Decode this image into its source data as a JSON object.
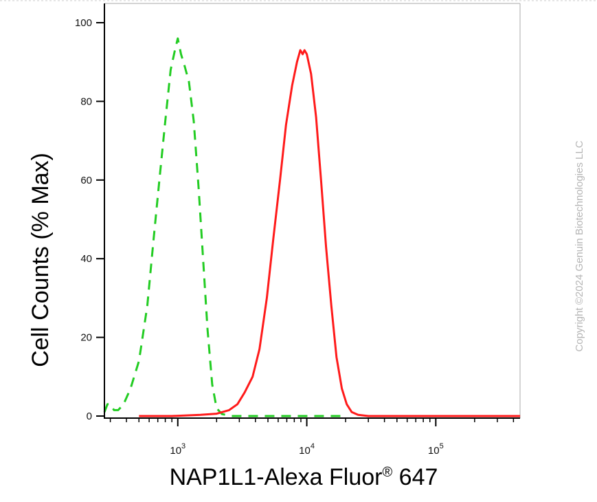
{
  "chart_data": {
    "type": "line",
    "title": "",
    "xlabel": "NAP1L1-Alexa Fluor",
    "xlabel_superscript": "®",
    "xlabel_suffix": " 647",
    "ylabel": "Cell Counts (% Max)",
    "x_scale": "log",
    "xlim": [
      270,
      450000
    ],
    "ylim": [
      0,
      100
    ],
    "y_ticks": [
      0,
      20,
      40,
      60,
      80,
      100
    ],
    "y_tick_labels": [
      "0",
      "20",
      "40",
      "60",
      "80",
      "100"
    ],
    "x_ticks": [
      1000,
      10000,
      100000
    ],
    "x_tick_labels": [
      {
        "base": "10",
        "exp": "3"
      },
      {
        "base": "10",
        "exp": "4"
      },
      {
        "base": "10",
        "exp": "5"
      }
    ],
    "grid": false,
    "legend": "none",
    "series": [
      {
        "color": "#22cc22",
        "dash": "dashed",
        "points": [
          [
            270,
            1
          ],
          [
            285,
            3
          ],
          [
            300,
            3
          ],
          [
            320,
            1.5
          ],
          [
            345,
            1.5
          ],
          [
            380,
            3
          ],
          [
            430,
            7
          ],
          [
            500,
            14
          ],
          [
            580,
            28
          ],
          [
            650,
            45
          ],
          [
            720,
            60
          ],
          [
            800,
            75
          ],
          [
            880,
            88
          ],
          [
            950,
            93
          ],
          [
            1000,
            96
          ],
          [
            1060,
            92
          ],
          [
            1130,
            89
          ],
          [
            1220,
            85
          ],
          [
            1330,
            75
          ],
          [
            1450,
            58
          ],
          [
            1570,
            40
          ],
          [
            1700,
            22
          ],
          [
            1850,
            8
          ],
          [
            2000,
            2
          ],
          [
            2200,
            0.5
          ],
          [
            2600,
            0
          ],
          [
            5000,
            0
          ],
          [
            12000,
            0
          ],
          [
            20000,
            0
          ]
        ]
      },
      {
        "color": "#ff1a1a",
        "dash": "solid",
        "points": [
          [
            500,
            0
          ],
          [
            900,
            0
          ],
          [
            1500,
            0.3
          ],
          [
            2000,
            0.6
          ],
          [
            2500,
            1.5
          ],
          [
            2900,
            3
          ],
          [
            3300,
            6
          ],
          [
            3800,
            10
          ],
          [
            4300,
            17
          ],
          [
            4900,
            30
          ],
          [
            5500,
            45
          ],
          [
            6200,
            60
          ],
          [
            6900,
            74
          ],
          [
            7700,
            84
          ],
          [
            8400,
            90
          ],
          [
            8900,
            93
          ],
          [
            9300,
            92
          ],
          [
            9600,
            93
          ],
          [
            10000,
            92
          ],
          [
            10800,
            87
          ],
          [
            11800,
            76
          ],
          [
            12900,
            60
          ],
          [
            14100,
            43
          ],
          [
            15500,
            28
          ],
          [
            17000,
            15
          ],
          [
            18700,
            7
          ],
          [
            20400,
            3
          ],
          [
            22300,
            1
          ],
          [
            25000,
            0.3
          ],
          [
            30000,
            0
          ],
          [
            100000,
            0
          ],
          [
            450000,
            0
          ]
        ]
      }
    ]
  },
  "watermark": "Copyright ©2024 Genuin Biotechnologies LLC",
  "colors": {
    "axis": "#000000",
    "frame": "#aaaaaa",
    "watermark": "#b5b5b5"
  }
}
